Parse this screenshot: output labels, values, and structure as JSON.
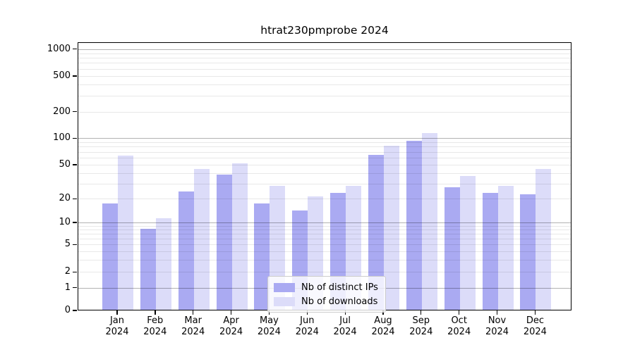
{
  "title": "htrat230pmprobe 2024",
  "legend": {
    "items": [
      {
        "label": "Nb of distinct IPs",
        "color": "#aaaaf2"
      },
      {
        "label": "Nb of downloads",
        "color": "#dcdcf9"
      }
    ]
  },
  "chart_data": {
    "type": "bar",
    "title": "htrat230pmprobe 2024",
    "categories": [
      "Jan 2024",
      "Feb 2024",
      "Mar 2024",
      "Apr 2024",
      "May 2024",
      "Jun 2024",
      "Jul 2024",
      "Aug 2024",
      "Sep 2024",
      "Oct 2024",
      "Nov 2024",
      "Dec 2024"
    ],
    "x_tick_months": [
      "Jan",
      "Feb",
      "Mar",
      "Apr",
      "May",
      "Jun",
      "Jul",
      "Aug",
      "Sep",
      "Oct",
      "Nov",
      "Dec"
    ],
    "x_tick_year": "2024",
    "series": [
      {
        "name": "Nb of distinct IPs",
        "color": "#aaaaf2",
        "values": [
          17,
          8,
          24,
          38,
          17,
          14,
          23,
          63,
          92,
          27,
          23,
          22
        ]
      },
      {
        "name": "Nb of downloads",
        "color": "#dcdcf9",
        "values": [
          62,
          11,
          44,
          51,
          28,
          21,
          28,
          80,
          112,
          36,
          28,
          44
        ]
      }
    ],
    "ylabel": "",
    "xlabel": "",
    "yscale": "log-with-zero",
    "yticks": [
      0,
      1,
      2,
      5,
      10,
      20,
      50,
      100,
      200,
      500,
      1000
    ],
    "ylim": [
      0,
      1200
    ],
    "major_gridlines": [
      1,
      10,
      100,
      1000
    ],
    "grid": true,
    "legend_position": "lower-center"
  }
}
